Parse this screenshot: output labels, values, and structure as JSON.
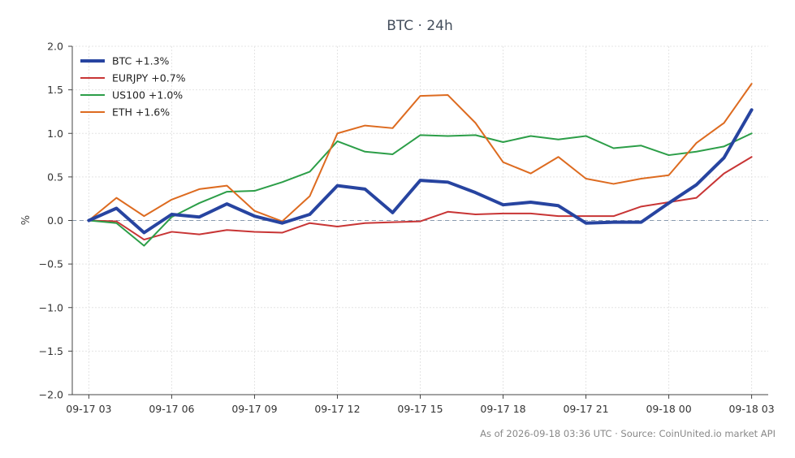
{
  "chart_data": {
    "type": "line",
    "title": "BTC · 24h",
    "xlabel": "",
    "ylabel": "%",
    "ylim": [
      -2.0,
      2.0
    ],
    "yticks": [
      "2.0",
      "1.5",
      "1.0",
      "0.5",
      "0.0",
      "−0.5",
      "−1.0",
      "−1.5",
      "−2.0"
    ],
    "ytick_values": [
      2.0,
      1.5,
      1.0,
      0.5,
      0.0,
      -0.5,
      -1.0,
      -1.5,
      -2.0
    ],
    "xlim": [
      -0.6,
      24.6
    ],
    "xtick_labels": [
      "09-17 03",
      "09-17 06",
      "09-17 09",
      "09-17 12",
      "09-17 15",
      "09-17 18",
      "09-17 21",
      "09-18 00",
      "09-18 03"
    ],
    "xtick_hours": [
      0,
      3,
      6,
      9,
      12,
      15,
      18,
      21,
      24
    ],
    "grid": true,
    "legend_position": "top-left",
    "zero_line": true,
    "x_hours": [
      0,
      1,
      2,
      3,
      4,
      5,
      6,
      7,
      8,
      9,
      10,
      11,
      12,
      13,
      14,
      15,
      16,
      17,
      18,
      19,
      20,
      21,
      22,
      23,
      24
    ],
    "series": [
      {
        "name": "BTC +1.3%",
        "color": "#2744a0",
        "width": 4,
        "values": [
          0.0,
          0.14,
          -0.14,
          0.07,
          0.04,
          0.19,
          0.05,
          -0.03,
          0.07,
          0.4,
          0.36,
          0.09,
          0.46,
          0.44,
          0.32,
          0.18,
          0.21,
          0.17,
          -0.03,
          -0.02,
          -0.02,
          0.2,
          0.41,
          0.72,
          1.27
        ]
      },
      {
        "name": "EURJPY +0.7%",
        "color": "#c83535",
        "width": 2,
        "values": [
          0.0,
          -0.01,
          -0.22,
          -0.13,
          -0.16,
          -0.11,
          -0.13,
          -0.14,
          -0.03,
          -0.07,
          -0.03,
          -0.02,
          -0.01,
          0.1,
          0.07,
          0.08,
          0.08,
          0.05,
          0.05,
          0.05,
          0.16,
          0.21,
          0.26,
          0.54,
          0.73
        ]
      },
      {
        "name": "US100 +1.0%",
        "color": "#2c9e48",
        "width": 2,
        "values": [
          0.0,
          -0.03,
          -0.29,
          0.04,
          0.2,
          0.33,
          0.34,
          0.44,
          0.56,
          0.91,
          0.79,
          0.76,
          0.98,
          0.97,
          0.98,
          0.9,
          0.97,
          0.93,
          0.97,
          0.83,
          0.86,
          0.75,
          0.79,
          0.85,
          1.0
        ]
      },
      {
        "name": "ETH +1.6%",
        "color": "#dd6b20",
        "width": 2,
        "values": [
          0.0,
          0.26,
          0.05,
          0.24,
          0.36,
          0.4,
          0.11,
          -0.01,
          0.28,
          1.0,
          1.09,
          1.06,
          1.43,
          1.44,
          1.12,
          0.67,
          0.54,
          0.73,
          0.48,
          0.42,
          0.48,
          0.52,
          0.89,
          1.12,
          1.57
        ]
      }
    ]
  },
  "footer": {
    "text": "As of 2026-09-18 03:36 UTC · Source: CoinUnited.io market API"
  }
}
